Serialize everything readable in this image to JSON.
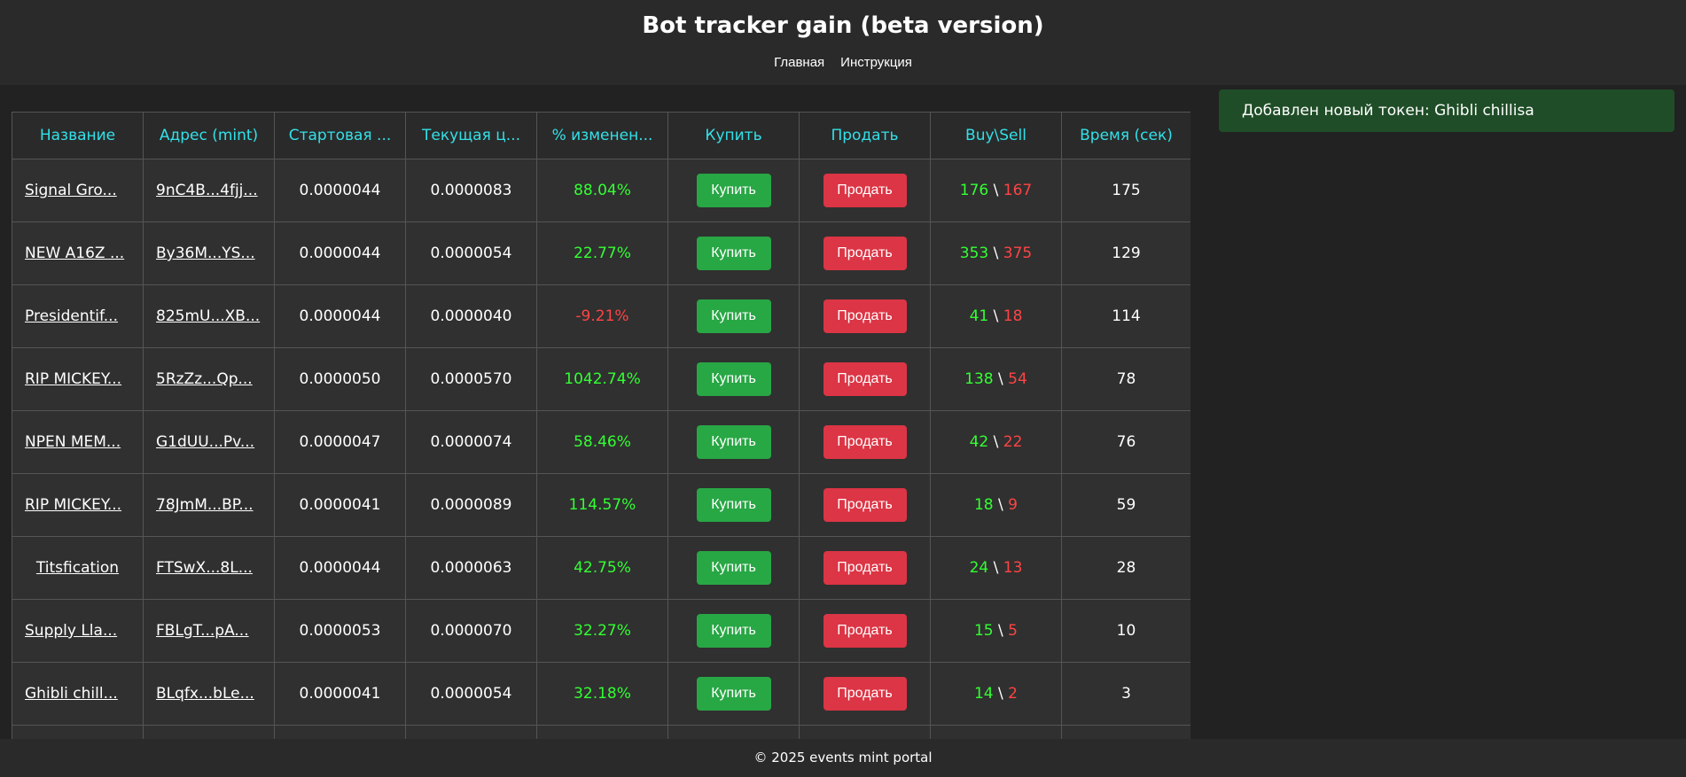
{
  "header": {
    "title": "Bot tracker gain (beta version)",
    "nav": [
      "Главная",
      "Инструкция"
    ]
  },
  "table": {
    "columns": [
      "Название",
      "Адрес (mint)",
      "Стартовая ...",
      "Текущая ц...",
      "% изменен...",
      "Купить",
      "Продать",
      "Buy\\Sell",
      "Время (сек)"
    ],
    "buy_label": "Купить",
    "sell_label": "Продать",
    "rows": [
      {
        "name": "Signal Gro...",
        "addr": "9nC4B...4fjj...",
        "start": "0.0000044",
        "current": "0.0000083",
        "change": "88.04%",
        "change_sign": "pos",
        "buys": "176",
        "sells": "167",
        "time": "175"
      },
      {
        "name": "NEW A16Z ...",
        "addr": "By36M...YS...",
        "start": "0.0000044",
        "current": "0.0000054",
        "change": "22.77%",
        "change_sign": "pos",
        "buys": "353",
        "sells": "375",
        "time": "129"
      },
      {
        "name": "Presidentif...",
        "addr": "825mU...XB...",
        "start": "0.0000044",
        "current": "0.0000040",
        "change": "-9.21%",
        "change_sign": "neg",
        "buys": "41",
        "sells": "18",
        "time": "114"
      },
      {
        "name": "RIP MICKEY...",
        "addr": "5RzZz...Qp...",
        "start": "0.0000050",
        "current": "0.0000570",
        "change": "1042.74%",
        "change_sign": "pos",
        "buys": "138",
        "sells": "54",
        "time": "78"
      },
      {
        "name": "NPEN MEM...",
        "addr": "G1dUU...Pv...",
        "start": "0.0000047",
        "current": "0.0000074",
        "change": "58.46%",
        "change_sign": "pos",
        "buys": "42",
        "sells": "22",
        "time": "76"
      },
      {
        "name": "RIP MICKEY...",
        "addr": "78JmM...BP...",
        "start": "0.0000041",
        "current": "0.0000089",
        "change": "114.57%",
        "change_sign": "pos",
        "buys": "18",
        "sells": "9",
        "time": "59"
      },
      {
        "name": "Titsfication",
        "addr": "FTSwX...8L...",
        "start": "0.0000044",
        "current": "0.0000063",
        "change": "42.75%",
        "change_sign": "pos",
        "buys": "24",
        "sells": "13",
        "time": "28"
      },
      {
        "name": "Supply Lla...",
        "addr": "FBLgT...pA...",
        "start": "0.0000053",
        "current": "0.0000070",
        "change": "32.27%",
        "change_sign": "pos",
        "buys": "15",
        "sells": "5",
        "time": "10"
      },
      {
        "name": "Ghibli chill...",
        "addr": "BLqfx...bLe...",
        "start": "0.0000041",
        "current": "0.0000054",
        "change": "32.18%",
        "change_sign": "pos",
        "buys": "14",
        "sells": "2",
        "time": "3"
      }
    ]
  },
  "toast": {
    "message": "Добавлен новый токен: Ghibli chillisa"
  },
  "footer": {
    "text": "© 2025 events mint portal"
  },
  "colors": {
    "accent_header": "#33e0e8",
    "positive": "#33ff33",
    "negative": "#ff4444",
    "buy_button": "#28a745",
    "sell_button": "#dc3545",
    "toast_bg": "#1f4d27"
  }
}
